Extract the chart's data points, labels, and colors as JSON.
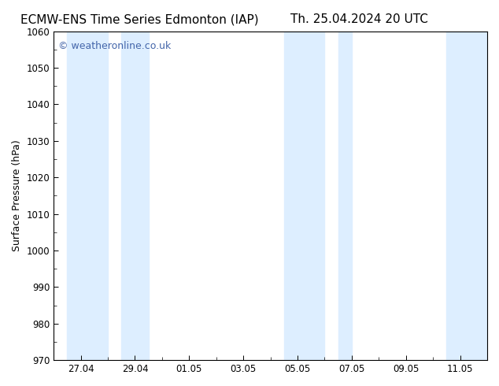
{
  "title_left": "ECMW-ENS Time Series Edmonton (IAP)",
  "title_right": "Th. 25.04.2024 20 UTC",
  "ylabel": "Surface Pressure (hPa)",
  "ylim": [
    970,
    1060
  ],
  "yticks": [
    970,
    980,
    990,
    1000,
    1010,
    1020,
    1030,
    1040,
    1050,
    1060
  ],
  "copyright_text": "© weatheronline.co.uk",
  "copyright_color": "#4466aa",
  "background_color": "#ffffff",
  "plot_bg_color": "#ffffff",
  "band_color": "#ddeeff",
  "band_alpha": 1.0,
  "x_start_days": 0,
  "bands": [
    {
      "start": 0.5,
      "end": 2.0
    },
    {
      "start": 2.5,
      "end": 3.5
    },
    {
      "start": 8.5,
      "end": 10.0
    },
    {
      "start": 10.5,
      "end": 11.0
    },
    {
      "start": 14.5,
      "end": 16.0
    }
  ],
  "xtick_labels": [
    "27.04",
    "29.04",
    "01.05",
    "03.05",
    "05.05",
    "07.05",
    "09.05",
    "11.05"
  ],
  "xtick_positions": [
    1,
    3,
    5,
    7,
    9,
    11,
    13,
    15
  ],
  "xmin": 0,
  "xmax": 16,
  "title_fontsize": 11,
  "tick_fontsize": 8.5,
  "ylabel_fontsize": 9,
  "copyright_fontsize": 9
}
